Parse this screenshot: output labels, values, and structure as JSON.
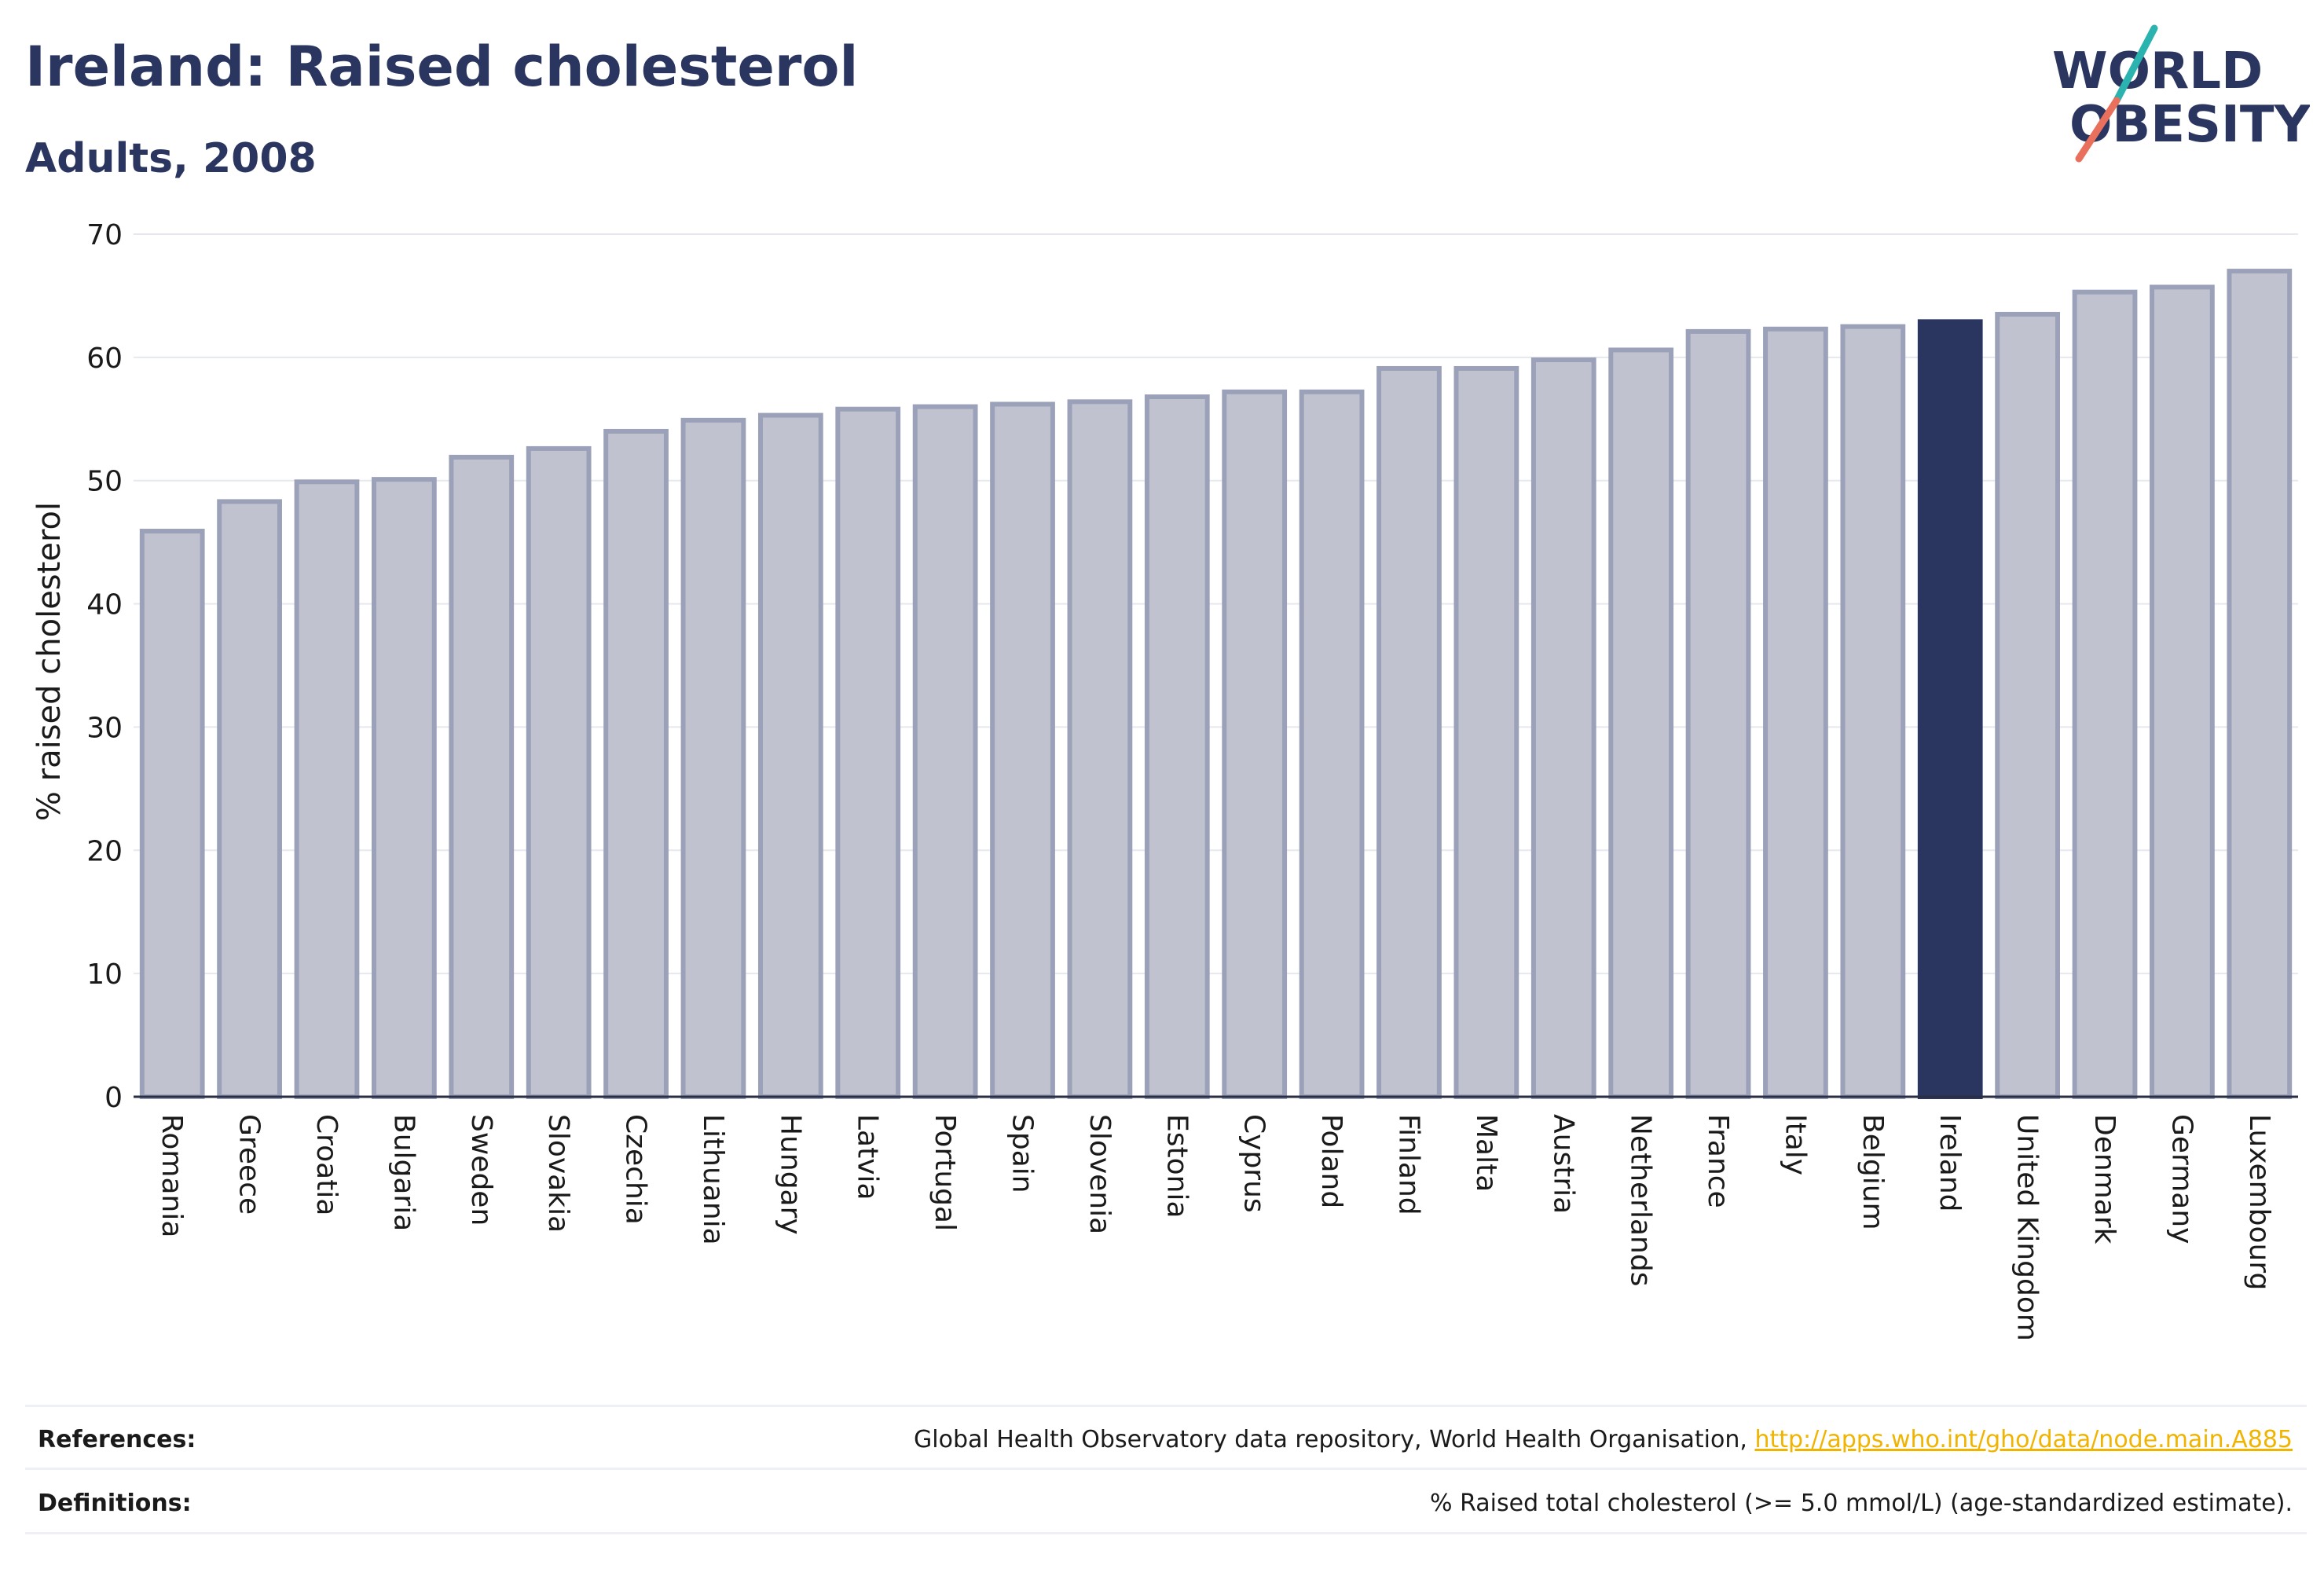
{
  "header": {
    "title": "Ireland: Raised cholesterol",
    "subtitle": "Adults, 2008"
  },
  "logo": {
    "line1": "WORLD",
    "line2": "OBESITY",
    "text_color": "#2a3560",
    "slash_top_color": "#2bb3b0",
    "slash_bottom_color": "#e8705c"
  },
  "chart_data": {
    "type": "bar",
    "categories": [
      "Romania",
      "Greece",
      "Croatia",
      "Bulgaria",
      "Sweden",
      "Slovakia",
      "Czechia",
      "Lithuania",
      "Hungary",
      "Latvia",
      "Portugal",
      "Spain",
      "Slovenia",
      "Estonia",
      "Cyprus",
      "Poland",
      "Finland",
      "Malta",
      "Austria",
      "Netherlands",
      "France",
      "Italy",
      "Belgium",
      "Ireland",
      "United Kingdom",
      "Denmark",
      "Germany",
      "Luxembourg"
    ],
    "values": [
      45.9,
      48.3,
      49.9,
      50.1,
      51.9,
      52.6,
      54.0,
      54.9,
      55.3,
      55.8,
      56.0,
      56.2,
      56.4,
      56.8,
      57.2,
      57.2,
      59.1,
      59.1,
      59.8,
      60.6,
      62.1,
      62.3,
      62.5,
      62.9,
      63.5,
      65.3,
      65.7,
      67.0
    ],
    "highlight": "Ireland",
    "ylabel": "% raised cholesterol",
    "xlabel": "",
    "ylim": [
      0,
      70
    ],
    "yticks": [
      0,
      10,
      20,
      30,
      40,
      50,
      60,
      70
    ],
    "grid": true,
    "bar_color": "#c0c3cf",
    "bar_edge_color": "#9ba1b8",
    "highlight_color": "#2a3560"
  },
  "footer": {
    "references_label": "References:",
    "references_text": "Global Health Observatory data repository, World Health Organisation, ",
    "references_link": "http://apps.who.int/gho/data/node.main.A885",
    "definitions_label": "Definitions:",
    "definitions_text": "% Raised total cholesterol (>= 5.0 mmol/L) (age-standardized estimate)."
  }
}
